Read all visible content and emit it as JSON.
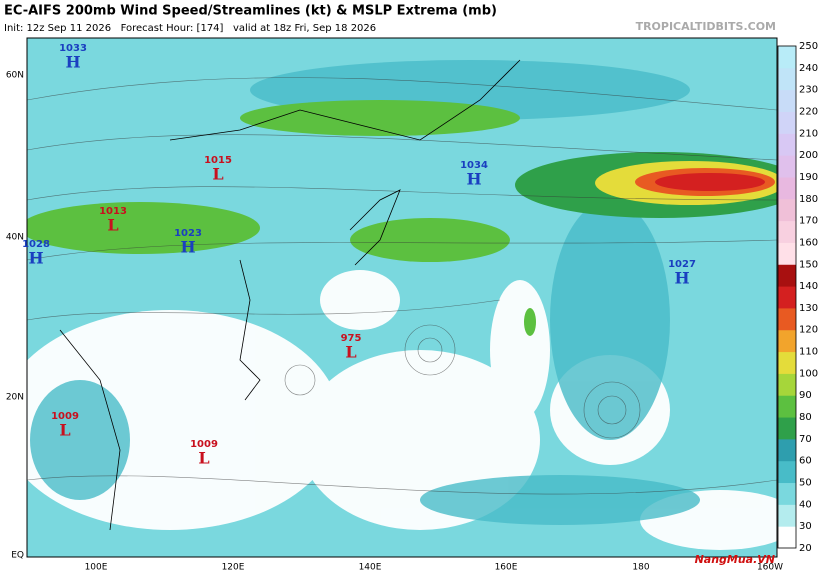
{
  "header": {
    "title": "EC-AIFS 200mb Wind Speed/Streamlines (kt) & MSLP Extrema (mb)",
    "subtitle": "Init: 12z Sep 11 2026   Forecast Hour: [174]   valid at 18z Fri, Sep 18 2026",
    "site": "TROPICALTIDBITS.COM"
  },
  "map": {
    "lat_labels": [
      "60N",
      "40N",
      "20N",
      "EQ"
    ],
    "lon_labels": [
      "100E",
      "120E",
      "140E",
      "160E",
      "180",
      "160W"
    ],
    "pressure_centers": [
      {
        "letter": "H",
        "value": "1033"
      },
      {
        "letter": "L",
        "value": "1015"
      },
      {
        "letter": "H",
        "value": "1034"
      },
      {
        "letter": "L",
        "value": "1013"
      },
      {
        "letter": "H",
        "value": "1023"
      },
      {
        "letter": "H",
        "value": "1028"
      },
      {
        "letter": "H",
        "value": "1027"
      },
      {
        "letter": "L",
        "value": "975"
      },
      {
        "letter": "L",
        "value": "1009"
      },
      {
        "letter": "L",
        "value": "1009"
      }
    ],
    "high_color": "#1a3fc0",
    "low_color": "#c8101e"
  },
  "colorbar": {
    "ticks": [
      20,
      30,
      40,
      50,
      60,
      70,
      80,
      90,
      100,
      110,
      120,
      130,
      140,
      150,
      160,
      170,
      180,
      190,
      200,
      210,
      220,
      230,
      240,
      250
    ],
    "colors": [
      "#ffffff",
      "#b4ecee",
      "#7ad8de",
      "#48bcc8",
      "#2e9eae",
      "#2fa04a",
      "#5cc040",
      "#a6d63a",
      "#e4dc3a",
      "#f2a42c",
      "#e85a22",
      "#d42020",
      "#a81010",
      "#ffe0e8",
      "#f8d0e0",
      "#f0c0d8",
      "#e8b8e0",
      "#e0c0ec",
      "#d8c8f4",
      "#d0d4f8",
      "#c8dcf8",
      "#c0e4f8",
      "#b8ecf8"
    ]
  },
  "watermark": "NangMua.VN"
}
